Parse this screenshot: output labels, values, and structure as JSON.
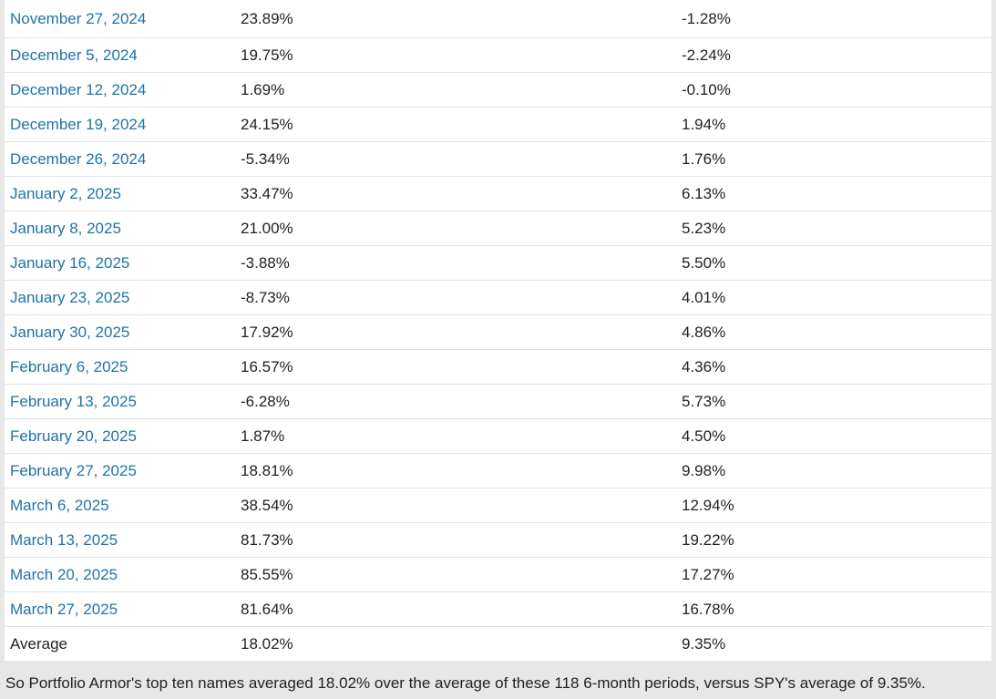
{
  "table": {
    "rows": [
      {
        "date": "November 27, 2024",
        "top_ten": "23.89%",
        "spy": "-1.28%"
      },
      {
        "date": "December 5, 2024",
        "top_ten": "19.75%",
        "spy": "-2.24%"
      },
      {
        "date": "December 12, 2024",
        "top_ten": "1.69%",
        "spy": "-0.10%"
      },
      {
        "date": "December 19, 2024",
        "top_ten": "24.15%",
        "spy": "1.94%"
      },
      {
        "date": "December 26, 2024",
        "top_ten": "-5.34%",
        "spy": "1.76%"
      },
      {
        "date": "January 2, 2025",
        "top_ten": "33.47%",
        "spy": "6.13%"
      },
      {
        "date": "January 8, 2025",
        "top_ten": "21.00%",
        "spy": "5.23%"
      },
      {
        "date": "January 16, 2025",
        "top_ten": "-3.88%",
        "spy": "5.50%"
      },
      {
        "date": "January 23, 2025",
        "top_ten": "-8.73%",
        "spy": "4.01%"
      },
      {
        "date": "January 30, 2025",
        "top_ten": "17.92%",
        "spy": "4.86%"
      },
      {
        "date": "February 6, 2025",
        "top_ten": "16.57%",
        "spy": "4.36%"
      },
      {
        "date": "February 13, 2025",
        "top_ten": "-6.28%",
        "spy": "5.73%"
      },
      {
        "date": "February 20, 2025",
        "top_ten": "1.87%",
        "spy": "4.50%"
      },
      {
        "date": "February 27, 2025",
        "top_ten": "18.81%",
        "spy": "9.98%"
      },
      {
        "date": "March 6, 2025",
        "top_ten": "38.54%",
        "spy": "12.94%"
      },
      {
        "date": "March 13, 2025",
        "top_ten": "81.73%",
        "spy": "19.22%"
      },
      {
        "date": "March 20, 2025",
        "top_ten": "85.55%",
        "spy": "17.27%"
      },
      {
        "date": "March 27, 2025",
        "top_ten": "81.64%",
        "spy": "16.78%"
      }
    ],
    "average": {
      "label": "Average",
      "top_ten": "18.02%",
      "spy": "9.35%"
    }
  },
  "summary": "So Portfolio Armor's top ten names averaged 18.02% over the average of these 118 6-month periods, versus SPY's average of 9.35%.",
  "colors": {
    "link": "#1e73a8",
    "text": "#222222",
    "background": "#e7e7e7",
    "table_background": "#ffffff",
    "row_divider": "#e2e2e2"
  }
}
